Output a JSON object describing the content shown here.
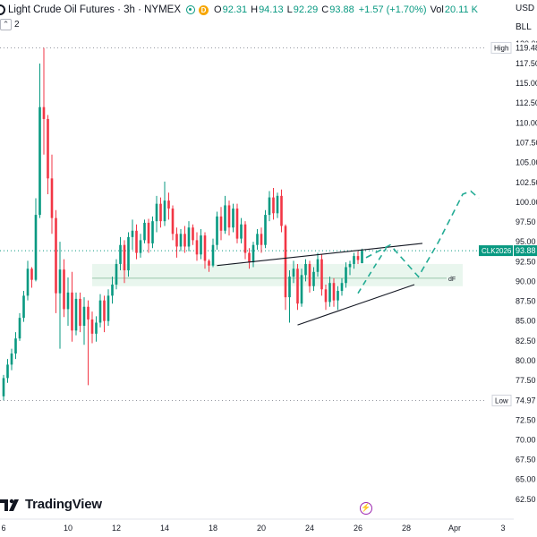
{
  "header": {
    "title": "Light Crude Oil Futures · 3h · NYMEX",
    "market_badge": "D",
    "o_label": "O",
    "o_value": "92.31",
    "h_label": "H",
    "h_value": "94.13",
    "l_label": "L",
    "l_value": "92.29",
    "c_label": "C",
    "c_value": "93.88",
    "change": "+1.57 (+1.70%)",
    "vol_label": "Vol",
    "vol_value": "20.11 K",
    "indicator_count": "2"
  },
  "top_right": {
    "currency": "USD",
    "unit": "BLL"
  },
  "logo_text": "TradingView",
  "colors": {
    "up": "#089981",
    "down": "#f23645",
    "pattern": "#131722",
    "projection": "#22ab94",
    "zone": "#e7f5ec",
    "price_label": "#089981"
  },
  "chart_data": {
    "type": "candlestick",
    "symbol": "CLK2026",
    "last_price": 93.88,
    "ylim": [
      60.0,
      121.0
    ],
    "y_ticks": [
      62.5,
      65.0,
      67.5,
      70.0,
      72.5,
      75.0,
      77.5,
      80.0,
      82.5,
      85.0,
      87.5,
      90.0,
      92.5,
      95.0,
      97.5,
      100.0,
      102.5,
      105.0,
      107.5,
      110.0,
      112.5,
      115.0,
      117.5,
      120.0
    ],
    "x_ticks": [
      {
        "label": "6",
        "i": 0
      },
      {
        "label": "10",
        "i": 16
      },
      {
        "label": "12",
        "i": 28
      },
      {
        "label": "14",
        "i": 40
      },
      {
        "label": "18",
        "i": 52
      },
      {
        "label": "20",
        "i": 64
      },
      {
        "label": "24",
        "i": 76
      },
      {
        "label": "26",
        "i": 88
      },
      {
        "label": "28",
        "i": 100
      },
      {
        "label": "Apr",
        "i": 112
      },
      {
        "label": "3",
        "i": 124
      }
    ],
    "high": {
      "label": "High",
      "value": 119.48
    },
    "low": {
      "label": "Low",
      "value": 74.97
    },
    "zone": {
      "top": 92.2,
      "bottom": 89.4,
      "label": "dF",
      "line": 90.4
    },
    "pattern_lines": [
      {
        "from": [
          53,
          92.0
        ],
        "to": [
          104,
          94.8
        ]
      },
      {
        "from": [
          73,
          84.5
        ],
        "to": [
          102,
          89.6
        ]
      }
    ],
    "projection": [
      [
        90,
        93.0
      ],
      [
        96,
        94.6
      ],
      [
        103,
        90.6
      ],
      [
        108,
        95.0
      ],
      [
        114,
        101.0
      ],
      [
        116,
        101.4
      ],
      [
        118,
        100.5
      ]
    ],
    "projection_short": [
      [
        88,
        88.5
      ],
      [
        92,
        91.8
      ],
      [
        95,
        94.2
      ]
    ],
    "candles": [
      [
        75.5,
        78.2,
        75.0,
        77.8
      ],
      [
        77.8,
        80.2,
        77.2,
        79.5
      ],
      [
        79.5,
        81.5,
        78.8,
        80.9
      ],
      [
        80.9,
        83.6,
        80.2,
        82.8
      ],
      [
        82.8,
        86.0,
        82.5,
        85.4
      ],
      [
        85.4,
        88.8,
        84.9,
        88.2
      ],
      [
        88.2,
        92.6,
        87.6,
        91.6
      ],
      [
        91.6,
        91.8,
        89.2,
        90.2
      ],
      [
        90.2,
        100.5,
        90.0,
        98.4
      ],
      [
        98.4,
        117.5,
        98.0,
        112.0
      ],
      [
        112.0,
        119.48,
        106.0,
        110.5
      ],
      [
        110.5,
        111.0,
        101.0,
        103.0
      ],
      [
        103.0,
        106.0,
        96.0,
        98.0
      ],
      [
        98.0,
        99.0,
        86.0,
        88.5
      ],
      [
        88.5,
        95.0,
        81.5,
        91.5
      ],
      [
        91.5,
        92.8,
        85.5,
        86.5
      ],
      [
        86.5,
        90.5,
        84.4,
        88.6
      ],
      [
        88.6,
        91.2,
        82.4,
        83.8
      ],
      [
        83.8,
        88.6,
        83.2,
        87.8
      ],
      [
        87.8,
        88.6,
        83.6,
        84.4
      ],
      [
        84.4,
        88.0,
        82.0,
        86.8
      ],
      [
        86.8,
        87.6,
        76.9,
        85.2
      ],
      [
        85.2,
        86.2,
        82.2,
        83.4
      ],
      [
        83.4,
        85.6,
        82.4,
        84.8
      ],
      [
        84.8,
        88.4,
        84.2,
        87.6
      ],
      [
        87.6,
        88.2,
        83.6,
        85.0
      ],
      [
        85.0,
        89.0,
        84.4,
        88.2
      ],
      [
        88.2,
        90.6,
        87.2,
        89.6
      ],
      [
        89.6,
        92.8,
        89.0,
        92.2
      ],
      [
        92.2,
        95.6,
        91.4,
        94.6
      ],
      [
        94.6,
        95.2,
        89.8,
        91.4
      ],
      [
        91.4,
        96.2,
        90.6,
        95.6
      ],
      [
        95.6,
        97.8,
        94.0,
        96.4
      ],
      [
        96.4,
        97.2,
        92.8,
        93.6
      ],
      [
        93.6,
        96.0,
        93.0,
        95.2
      ],
      [
        95.2,
        97.8,
        94.8,
        97.4
      ],
      [
        97.4,
        97.9,
        93.6,
        94.8
      ],
      [
        94.8,
        98.2,
        94.2,
        97.6
      ],
      [
        97.6,
        100.8,
        96.2,
        99.8
      ],
      [
        99.8,
        100.6,
        96.8,
        97.6
      ],
      [
        97.6,
        102.6,
        97.0,
        100.2
      ],
      [
        100.2,
        101.2,
        97.8,
        99.2
      ],
      [
        99.2,
        99.6,
        95.2,
        96.0
      ],
      [
        96.0,
        96.8,
        93.0,
        94.4
      ],
      [
        94.4,
        96.6,
        93.8,
        96.0
      ],
      [
        96.0,
        97.0,
        93.6,
        94.4
      ],
      [
        94.4,
        97.6,
        93.8,
        96.8
      ],
      [
        96.8,
        97.2,
        94.6,
        95.2
      ],
      [
        95.2,
        96.2,
        92.6,
        93.4
      ],
      [
        93.4,
        96.6,
        92.8,
        95.8
      ],
      [
        95.8,
        96.2,
        91.6,
        92.6
      ],
      [
        92.6,
        92.8,
        91.2,
        92.0
      ],
      [
        92.0,
        95.4,
        91.8,
        94.6
      ],
      [
        94.6,
        98.8,
        94.0,
        98.2
      ],
      [
        98.2,
        99.4,
        95.2,
        96.4
      ],
      [
        96.4,
        100.8,
        96.0,
        99.6
      ],
      [
        99.6,
        100.2,
        95.8,
        96.8
      ],
      [
        96.8,
        99.8,
        96.2,
        99.2
      ],
      [
        99.2,
        99.8,
        94.8,
        95.4
      ],
      [
        95.4,
        98.0,
        94.8,
        97.2
      ],
      [
        97.2,
        97.6,
        92.8,
        93.6
      ],
      [
        93.6,
        94.2,
        91.6,
        92.4
      ],
      [
        92.4,
        95.0,
        91.8,
        94.6
      ],
      [
        94.6,
        96.6,
        94.0,
        96.0
      ],
      [
        96.0,
        96.8,
        93.6,
        94.6
      ],
      [
        94.6,
        99.0,
        94.2,
        98.4
      ],
      [
        98.4,
        101.4,
        97.6,
        100.6
      ],
      [
        100.6,
        101.8,
        97.8,
        98.6
      ],
      [
        98.6,
        101.2,
        98.0,
        100.8
      ],
      [
        100.8,
        101.6,
        96.2,
        97.0
      ],
      [
        97.0,
        97.2,
        86.4,
        88.0
      ],
      [
        88.0,
        91.4,
        84.8,
        90.6
      ],
      [
        90.6,
        92.6,
        89.8,
        91.6
      ],
      [
        91.6,
        92.2,
        86.4,
        87.2
      ],
      [
        87.2,
        91.6,
        86.8,
        90.8
      ],
      [
        90.8,
        92.8,
        90.0,
        92.2
      ],
      [
        92.2,
        92.6,
        88.6,
        89.4
      ],
      [
        89.4,
        91.8,
        88.8,
        91.2
      ],
      [
        91.2,
        93.6,
        90.6,
        92.8
      ],
      [
        92.8,
        93.4,
        88.2,
        89.0
      ],
      [
        89.0,
        89.6,
        86.4,
        87.4
      ],
      [
        87.4,
        90.6,
        86.8,
        89.8
      ],
      [
        89.8,
        90.4,
        86.8,
        87.6
      ],
      [
        87.6,
        89.4,
        86.4,
        88.8
      ],
      [
        88.8,
        90.4,
        88.2,
        89.8
      ],
      [
        89.8,
        92.4,
        89.2,
        91.8
      ],
      [
        91.8,
        92.6,
        90.8,
        92.2
      ],
      [
        92.2,
        93.6,
        91.6,
        93.2
      ],
      [
        93.2,
        93.8,
        92.2,
        92.7
      ],
      [
        92.3,
        94.13,
        92.29,
        93.88
      ]
    ]
  }
}
